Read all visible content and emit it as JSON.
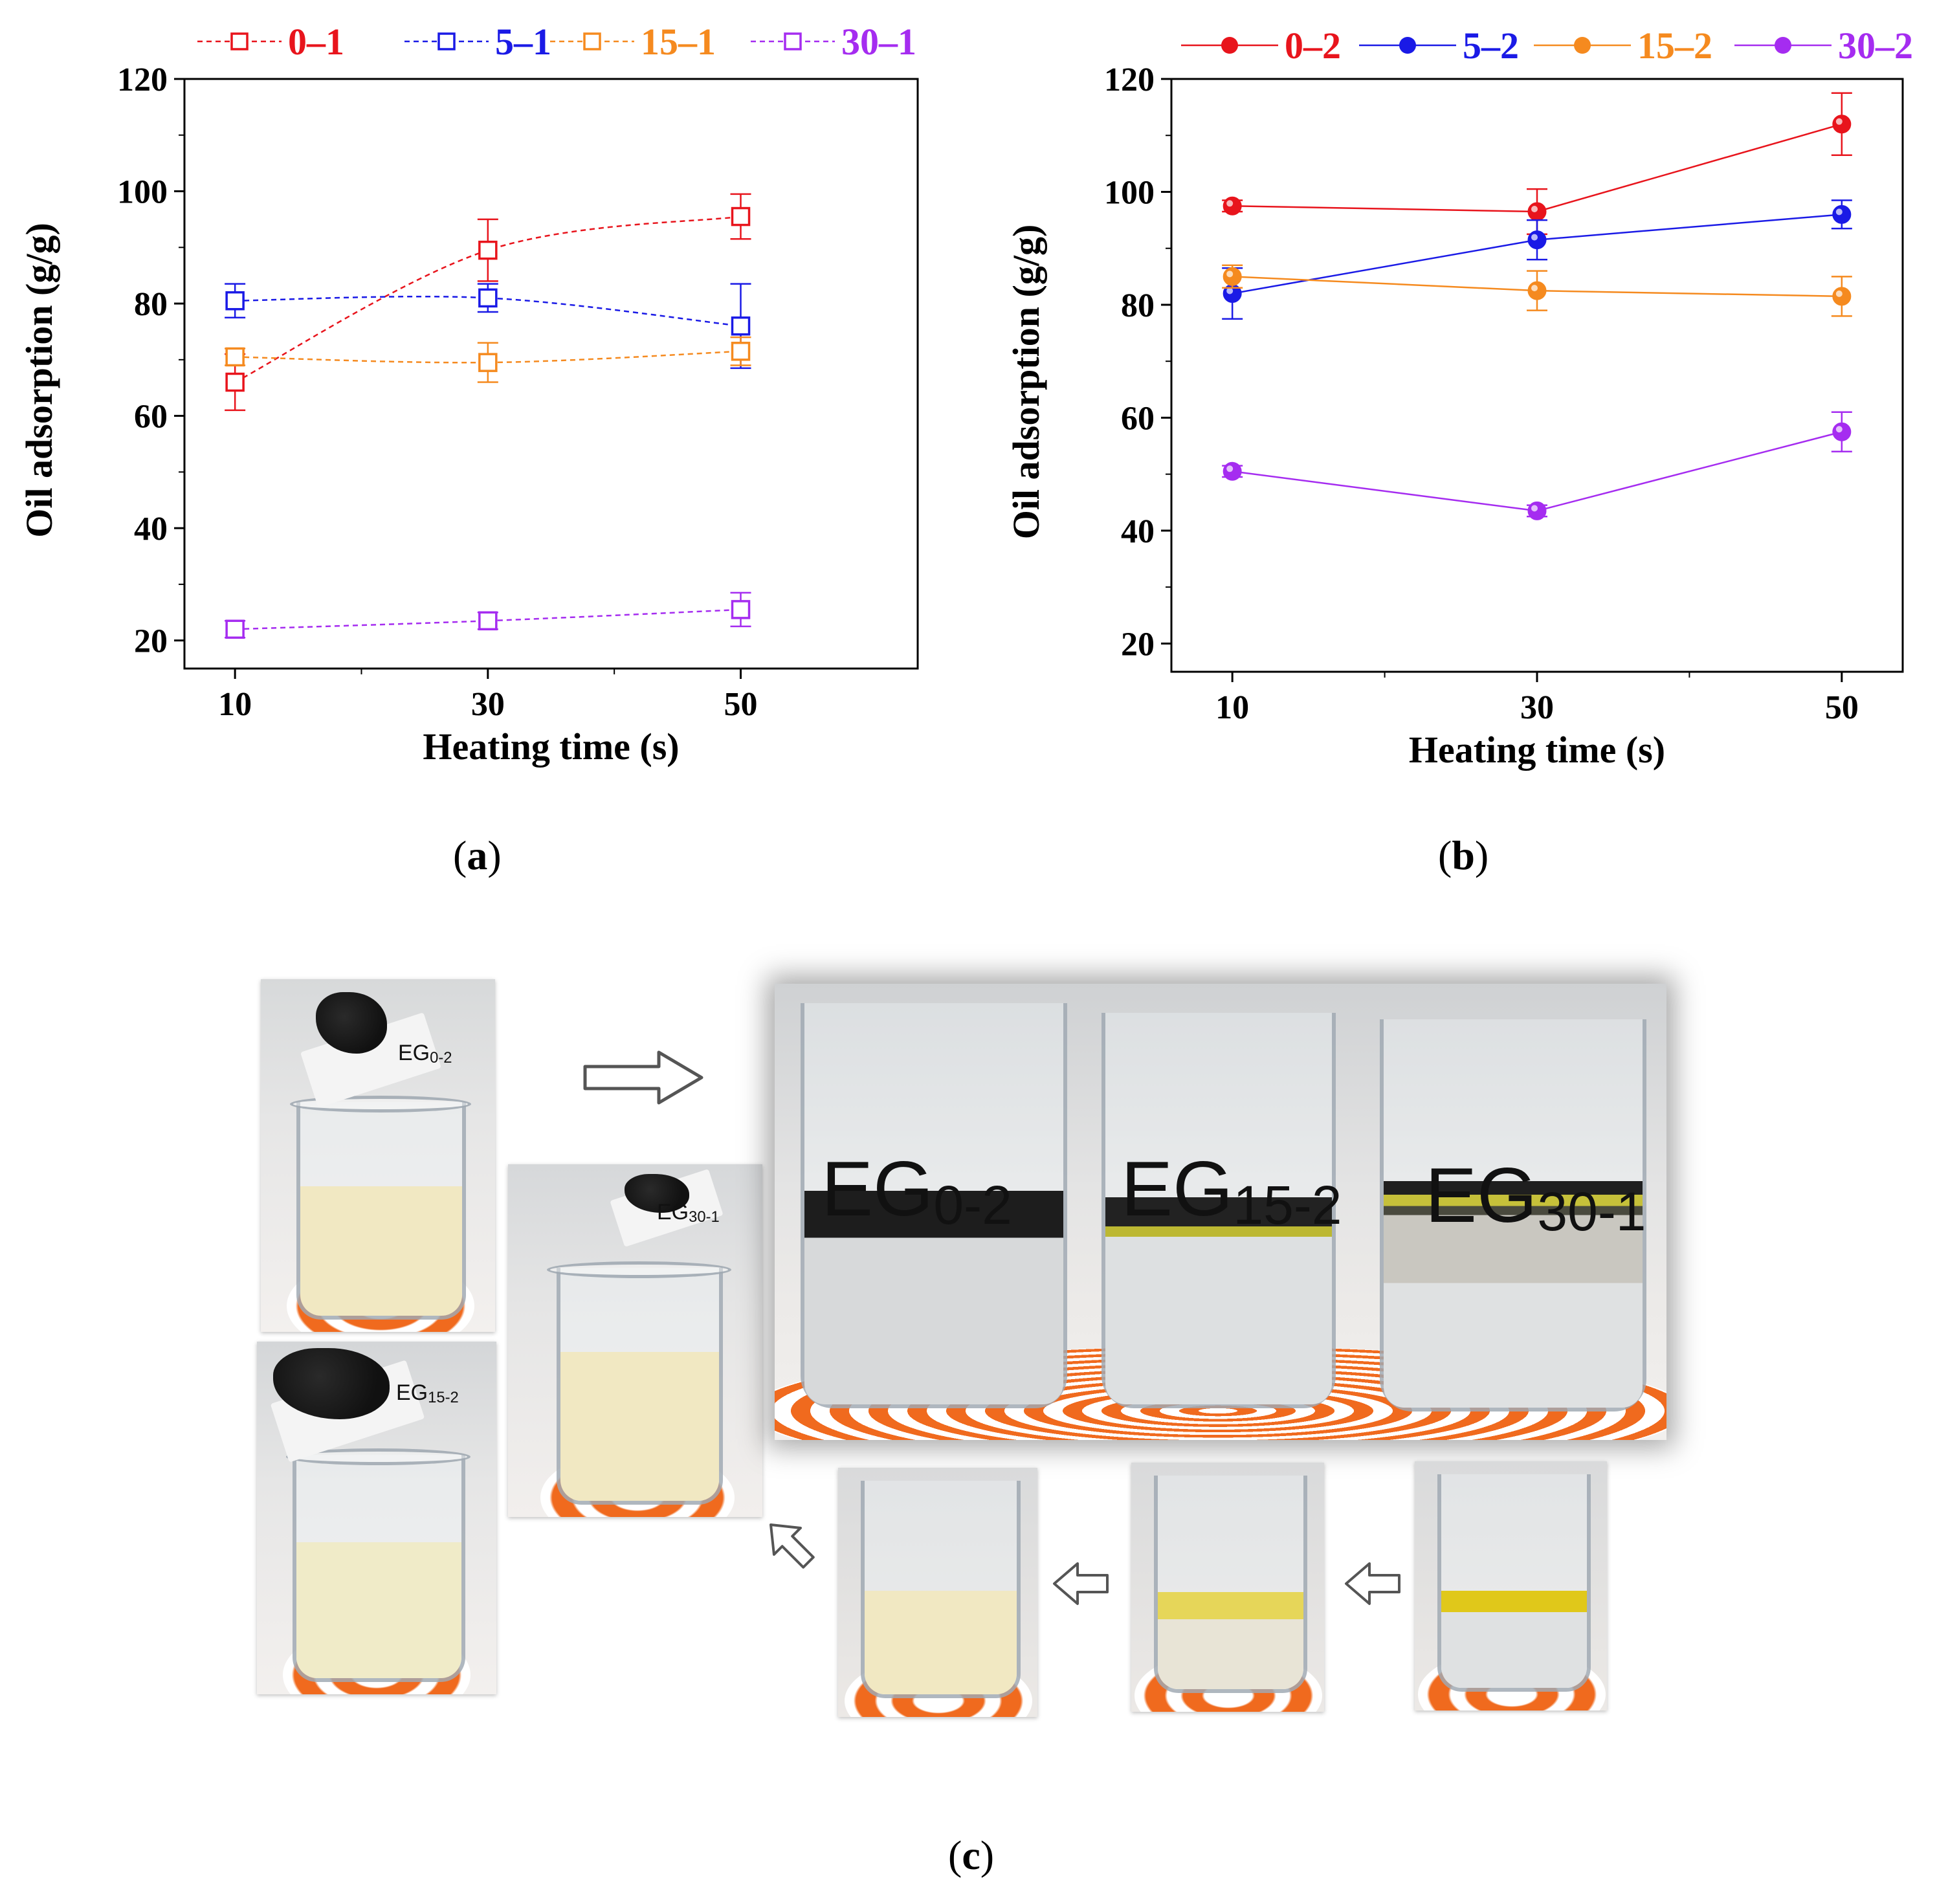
{
  "chart_data": [
    {
      "type": "line",
      "panel": "(a)",
      "xlabel": "Heating time (s)",
      "ylabel": "Oil adsorption (g/g)",
      "x": [
        10,
        30,
        50
      ],
      "xlim": [
        6,
        64
      ],
      "ylim": [
        15,
        120
      ],
      "yticks": [
        20,
        40,
        60,
        80,
        100,
        120
      ],
      "xticks": [
        10,
        30,
        50
      ],
      "marker": "open-square",
      "line_style": "dashed",
      "legend_placement": "top",
      "series": [
        {
          "name": "0–1",
          "color": "#e8141c",
          "values": [
            66,
            89.5,
            95.5
          ],
          "errors": [
            5,
            5.5,
            4
          ]
        },
        {
          "name": "5–1",
          "color": "#1a1ae6",
          "values": [
            80.5,
            81,
            76
          ],
          "errors": [
            3,
            2.5,
            7.5
          ]
        },
        {
          "name": "15–1",
          "color": "#f58a1f",
          "values": [
            70.5,
            69.5,
            71.5
          ],
          "errors": [
            1.5,
            3.5,
            2.5
          ]
        },
        {
          "name": "30–1",
          "color": "#a52cf0",
          "values": [
            22,
            23.5,
            25.5
          ],
          "errors": [
            1.5,
            1.5,
            3
          ]
        }
      ]
    },
    {
      "type": "line",
      "panel": "(b)",
      "xlabel": "Heating time (s)",
      "ylabel": "Oil adsorption (g/g)",
      "x": [
        10,
        30,
        50
      ],
      "xlim": [
        6,
        54
      ],
      "ylim": [
        15,
        120
      ],
      "yticks": [
        20,
        40,
        60,
        80,
        100,
        120
      ],
      "xticks": [
        10,
        30,
        50
      ],
      "marker": "filled-sphere",
      "line_style": "solid",
      "legend_placement": "top",
      "series": [
        {
          "name": "0–2",
          "color": "#e8141c",
          "values": [
            97.5,
            96.5,
            112
          ],
          "errors": [
            1,
            4,
            5.5
          ]
        },
        {
          "name": "5–2",
          "color": "#1a1ae6",
          "values": [
            82,
            91.5,
            96
          ],
          "errors": [
            4.5,
            3.5,
            2.5
          ]
        },
        {
          "name": "15–2",
          "color": "#f58a1f",
          "values": [
            85,
            82.5,
            81.5
          ],
          "errors": [
            2,
            3.5,
            3.5
          ]
        },
        {
          "name": "30–2",
          "color": "#a52cf0",
          "values": [
            50.5,
            43.5,
            57.5
          ],
          "errors": [
            1,
            1,
            3.5
          ]
        }
      ]
    }
  ],
  "panel_labels": {
    "a": "a",
    "b": "b",
    "c": "c"
  },
  "photos": {
    "eg02": {
      "prefix": "EG",
      "sub": "0-2"
    },
    "eg152": {
      "prefix": "EG",
      "sub": "15-2"
    },
    "eg301": {
      "prefix": "EG",
      "sub": "30-1"
    }
  },
  "colors": {
    "oil_yellow": "#e8d46a",
    "emulsion": "#f1e8c2",
    "pad_orange": "#f06a1e"
  }
}
